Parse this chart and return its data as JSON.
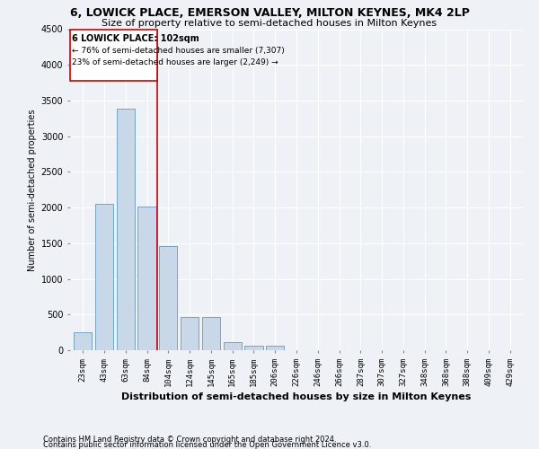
{
  "title1": "6, LOWICK PLACE, EMERSON VALLEY, MILTON KEYNES, MK4 2LP",
  "title2": "Size of property relative to semi-detached houses in Milton Keynes",
  "xlabel": "Distribution of semi-detached houses by size in Milton Keynes",
  "ylabel": "Number of semi-detached properties",
  "footnote1": "Contains HM Land Registry data © Crown copyright and database right 2024.",
  "footnote2": "Contains public sector information licensed under the Open Government Licence v3.0.",
  "annotation_line1": "6 LOWICK PLACE: 102sqm",
  "annotation_line2": "← 76% of semi-detached houses are smaller (7,307)",
  "annotation_line3": "23% of semi-detached houses are larger (2,249) →",
  "bar_color": "#c8d8e8",
  "bar_edge_color": "#6699bb",
  "vline_color": "#cc0000",
  "vline_idx": 4,
  "annotation_box_color": "#cc0000",
  "ylim": [
    0,
    4500
  ],
  "yticks": [
    0,
    500,
    1000,
    1500,
    2000,
    2500,
    3000,
    3500,
    4000,
    4500
  ],
  "categories": [
    "23sqm",
    "43sqm",
    "63sqm",
    "84sqm",
    "104sqm",
    "124sqm",
    "145sqm",
    "165sqm",
    "185sqm",
    "206sqm",
    "226sqm",
    "246sqm",
    "266sqm",
    "287sqm",
    "307sqm",
    "327sqm",
    "348sqm",
    "368sqm",
    "388sqm",
    "409sqm",
    "429sqm"
  ],
  "values": [
    250,
    2050,
    3380,
    2020,
    1460,
    470,
    470,
    110,
    65,
    60,
    0,
    0,
    0,
    0,
    0,
    0,
    0,
    0,
    0,
    0,
    0
  ],
  "background_color": "#eef2f7",
  "grid_color": "#ffffff",
  "title_fontsize": 9,
  "subtitle_fontsize": 8,
  "ann_fontsize1": 7,
  "ann_fontsize2": 6.5,
  "ylabel_fontsize": 7,
  "xlabel_fontsize": 8,
  "footnote_fontsize": 6,
  "tick_fontsize": 6.5
}
